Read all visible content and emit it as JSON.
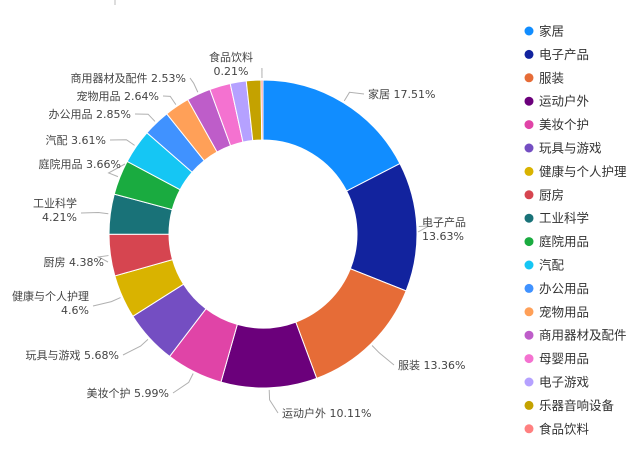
{
  "chart_data": {
    "type": "pie",
    "style": "donut",
    "categories": [
      "家居",
      "电子产品",
      "服装",
      "运动户外",
      "美妆个护",
      "玩具与游戏",
      "健康与个人护理",
      "厨房",
      "工业科学",
      "庭院用品",
      "汽配",
      "办公用品",
      "宠物用品",
      "商用器材及配件",
      "母婴用品",
      "电子游戏",
      "乐器音响设备",
      "食品饮料"
    ],
    "values": [
      17.51,
      13.63,
      13.36,
      10.11,
      5.99,
      5.68,
      4.6,
      4.38,
      4.21,
      3.66,
      3.61,
      2.85,
      2.64,
      2.53,
      2.19,
      1.69,
      1.53,
      0.21
    ],
    "colors": [
      "#118DFF",
      "#12239E",
      "#E66C37",
      "#6B007B",
      "#E044A7",
      "#744EC2",
      "#D9B300",
      "#D64550",
      "#197278",
      "#1AAB40",
      "#15C6F4",
      "#4092FF",
      "#FFA058",
      "#BE5DC9",
      "#F472D0",
      "#B5A1FF",
      "#C4A200",
      "#FF8080"
    ],
    "labels": [
      {
        "text": "家居 17.51%"
      },
      {
        "line1": "电子产品",
        "line2": "13.63%"
      },
      {
        "text": "服装 13.36%"
      },
      {
        "text": "运动户外 10.11%"
      },
      {
        "text": "美妆个护 5.99%"
      },
      {
        "text": "玩具与游戏 5.68%"
      },
      {
        "line1": "健康与个人护理",
        "line2": "4.6%"
      },
      {
        "text": "厨房 4.38%"
      },
      {
        "line1": "工业科学",
        "line2": "4.21%"
      },
      {
        "text": "庭院用品 3.66%"
      },
      {
        "text": "汽配 3.61%"
      },
      {
        "text": "办公用品 2.85%"
      },
      {
        "text": "宠物用品 2.64%"
      },
      {
        "text": "商用器材及配件 2.53%"
      },
      null,
      null,
      null,
      {
        "line1": "食品饮料",
        "line2": "0.21%"
      }
    ],
    "legend": {
      "position": "right",
      "items": [
        "家居",
        "电子产品",
        "服装",
        "运动户外",
        "美妆个护",
        "玩具与游戏",
        "健康与个人护理",
        "厨房",
        "工业科学",
        "庭院用品",
        "汽配",
        "办公用品",
        "宠物用品",
        "商用器材及配件",
        "母婴用品",
        "电子游戏",
        "乐器音响设备",
        "食品饮料"
      ]
    }
  }
}
